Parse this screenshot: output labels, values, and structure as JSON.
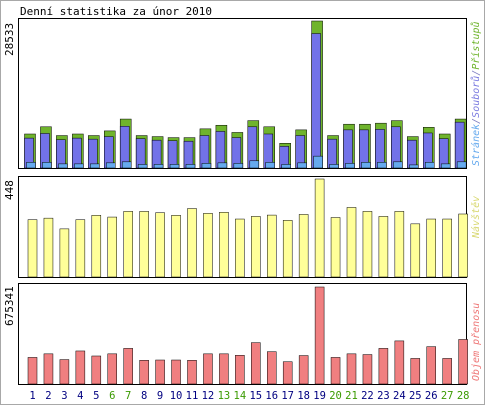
{
  "chart_data": [
    {
      "type": "bar",
      "title": "Denní statistika za únor 2010",
      "categories": [
        "1",
        "2",
        "3",
        "4",
        "5",
        "6",
        "7",
        "8",
        "9",
        "10",
        "11",
        "12",
        "13",
        "14",
        "15",
        "16",
        "17",
        "18",
        "19",
        "20",
        "21",
        "22",
        "23",
        "24",
        "25",
        "26",
        "27",
        "28"
      ],
      "y_max_label": "28533",
      "ylim": [
        0,
        28533
      ],
      "legend": [
        {
          "text": "Přístupů",
          "color": "#6fb42c"
        },
        {
          "text": "/",
          "color": "#7a7ac0"
        },
        {
          "text": "Souborů",
          "color": "#7a7ae0"
        },
        {
          "text": "/",
          "color": "#7a7ac0"
        },
        {
          "text": "Stránek",
          "color": "#66aaee"
        }
      ],
      "series": [
        {
          "name": "Přístupů",
          "color": "#6fb42c",
          "values": [
            6600,
            8000,
            6300,
            6600,
            6300,
            7200,
            9500,
            6300,
            6100,
            5900,
            5900,
            7600,
            8300,
            6900,
            9200,
            8000,
            4800,
            7400,
            28533,
            6300,
            8500,
            8500,
            8700,
            9200,
            6100,
            7900,
            6600,
            9500
          ]
        },
        {
          "name": "Souborů",
          "color": "#7272e8",
          "values": [
            5800,
            6700,
            5500,
            5800,
            5600,
            6100,
            8100,
            5700,
            5400,
            5300,
            5200,
            6300,
            7100,
            5900,
            8000,
            6600,
            4200,
            6300,
            26100,
            5600,
            7400,
            7400,
            7500,
            8000,
            5400,
            6800,
            5700,
            8900
          ]
        },
        {
          "name": "Stránek",
          "color": "#66aaee",
          "values": [
            1100,
            1100,
            800,
            800,
            800,
            1000,
            1200,
            700,
            700,
            700,
            700,
            900,
            1000,
            900,
            1400,
            1100,
            700,
            1000,
            2300,
            700,
            900,
            1100,
            1100,
            1200,
            600,
            1100,
            800,
            1200
          ]
        }
      ]
    },
    {
      "type": "bar",
      "categories": [
        "1",
        "2",
        "3",
        "4",
        "5",
        "6",
        "7",
        "8",
        "9",
        "10",
        "11",
        "12",
        "13",
        "14",
        "15",
        "16",
        "17",
        "18",
        "19",
        "20",
        "21",
        "22",
        "23",
        "24",
        "25",
        "26",
        "27",
        "28"
      ],
      "y_max_label": "448",
      "ylim": [
        0,
        448
      ],
      "legend": [
        {
          "text": "Návštěv",
          "color": "#d8d870"
        }
      ],
      "series": [
        {
          "name": "Návštěv",
          "color": "#ffff99",
          "values": [
            262,
            269,
            220,
            262,
            282,
            274,
            300,
            300,
            294,
            282,
            313,
            291,
            296,
            265,
            277,
            283,
            259,
            286,
            448,
            272,
            318,
            300,
            277,
            300,
            243,
            265,
            265,
            288
          ]
        }
      ]
    },
    {
      "type": "bar",
      "categories": [
        "1",
        "2",
        "3",
        "4",
        "5",
        "6",
        "7",
        "8",
        "9",
        "10",
        "11",
        "12",
        "13",
        "14",
        "15",
        "16",
        "17",
        "18",
        "19",
        "20",
        "21",
        "22",
        "23",
        "24",
        "25",
        "26",
        "27",
        "28"
      ],
      "y_max_label": "675341",
      "ylim": [
        0,
        675341
      ],
      "legend": [
        {
          "text": "Objem přenosu",
          "color": "#ee7777"
        }
      ],
      "series": [
        {
          "name": "Objem přenosu",
          "color": "#f07f80",
          "values": [
            185000,
            210000,
            170000,
            230000,
            195000,
            210000,
            248000,
            165000,
            167000,
            167000,
            165000,
            210000,
            210000,
            200000,
            288000,
            225000,
            155000,
            198000,
            675341,
            185000,
            210000,
            205000,
            248000,
            300000,
            178000,
            260000,
            178000,
            310000
          ]
        }
      ]
    }
  ],
  "day_colors": {
    "weekday": "#000080",
    "weekend": "#3a9a00"
  },
  "weekend_days": [
    6,
    7,
    13,
    14,
    20,
    21,
    27,
    28
  ]
}
